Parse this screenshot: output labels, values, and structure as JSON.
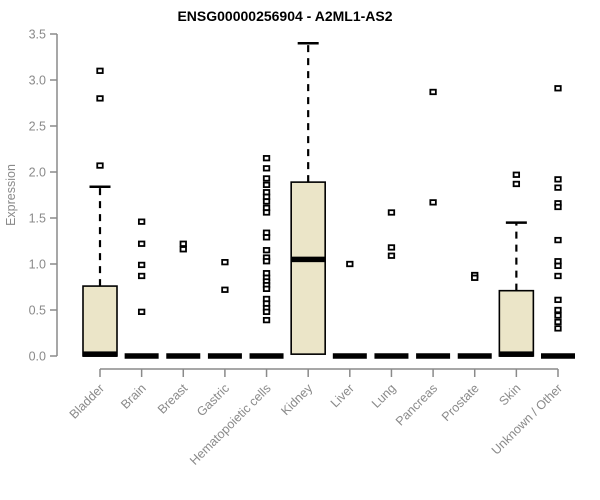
{
  "chart_data": {
    "type": "boxplot",
    "title": "ENSG00000256904 - A2ML1-AS2",
    "ylabel": "Expression",
    "xlabel": "",
    "ylim": [
      0,
      3.5
    ],
    "ytick_labels": [
      "0.0",
      "0.5",
      "1.0",
      "1.5",
      "2.0",
      "2.5",
      "3.0",
      "3.5"
    ],
    "ytick_values": [
      0,
      0.5,
      1.0,
      1.5,
      2.0,
      2.5,
      3.0,
      3.5
    ],
    "grid": false,
    "legend": "none",
    "colors": {
      "box_fill": "#ebe5c8",
      "box_border": "#000000",
      "median": "#000000",
      "whisker": "#000000",
      "outlier": "#000000",
      "axis": "#8a8a8a",
      "tick_text": "#8a8a8a",
      "title": "#000000",
      "background": "#ffffff"
    },
    "categories": [
      "Bladder",
      "Brain",
      "Breast",
      "Gastric",
      "Hematopoietic cells",
      "Kidney",
      "Liver",
      "Lung",
      "Pancreas",
      "Prostate",
      "Skin",
      "Unknown / Other"
    ],
    "boxes": [
      {
        "label": "Bladder",
        "q1": 0,
        "median": 0.02,
        "q3": 0.76,
        "whisker_low": 0,
        "whisker_high": 1.84,
        "outliers": [
          3.1,
          2.8,
          2.07
        ]
      },
      {
        "label": "Brain",
        "q1": 0,
        "median": 0,
        "q3": 0,
        "whisker_low": 0,
        "whisker_high": 0,
        "outliers": [
          1.46,
          1.22,
          0.99,
          0.87,
          0.48
        ]
      },
      {
        "label": "Breast",
        "q1": 0,
        "median": 0,
        "q3": 0,
        "whisker_low": 0,
        "whisker_high": 0,
        "outliers": [
          1.22,
          1.16
        ]
      },
      {
        "label": "Gastric",
        "q1": 0,
        "median": 0,
        "q3": 0,
        "whisker_low": 0,
        "whisker_high": 0,
        "outliers": [
          1.02,
          0.72
        ]
      },
      {
        "label": "Hematopoietic cells",
        "q1": 0,
        "median": 0,
        "q3": 0,
        "whisker_low": 0,
        "whisker_high": 0,
        "outliers": [
          2.15,
          2.04,
          1.93,
          1.86,
          1.78,
          1.73,
          1.68,
          1.61,
          1.56,
          1.34,
          1.29,
          1.15,
          1.07,
          1.03,
          0.9,
          0.85,
          0.81,
          0.77,
          0.73,
          0.62,
          0.57,
          0.52,
          0.48,
          0.39
        ]
      },
      {
        "label": "Kidney",
        "q1": 0.02,
        "median": 1.05,
        "q3": 1.89,
        "whisker_low": 0.02,
        "whisker_high": 3.4,
        "outliers": []
      },
      {
        "label": "Liver",
        "q1": 0,
        "median": 0,
        "q3": 0,
        "whisker_low": 0,
        "whisker_high": 0,
        "outliers": [
          1.0
        ]
      },
      {
        "label": "Lung",
        "q1": 0,
        "median": 0,
        "q3": 0,
        "whisker_low": 0,
        "whisker_high": 0,
        "outliers": [
          1.56,
          1.18,
          1.09
        ]
      },
      {
        "label": "Pancreas",
        "q1": 0,
        "median": 0,
        "q3": 0,
        "whisker_low": 0,
        "whisker_high": 0,
        "outliers": [
          2.87,
          1.67
        ]
      },
      {
        "label": "Prostate",
        "q1": 0,
        "median": 0,
        "q3": 0,
        "whisker_low": 0,
        "whisker_high": 0,
        "outliers": [
          0.88,
          0.85
        ]
      },
      {
        "label": "Skin",
        "q1": 0,
        "median": 0.02,
        "q3": 0.71,
        "whisker_low": 0,
        "whisker_high": 1.45,
        "outliers": [
          1.97,
          1.87
        ]
      },
      {
        "label": "Unknown / Other",
        "q1": 0,
        "median": 0,
        "q3": 0,
        "whisker_low": 0,
        "whisker_high": 0,
        "outliers": [
          2.91,
          1.92,
          1.83,
          1.66,
          1.62,
          1.26,
          1.03,
          0.98,
          0.87,
          0.61,
          0.5,
          0.44,
          0.37,
          0.3
        ]
      }
    ]
  }
}
